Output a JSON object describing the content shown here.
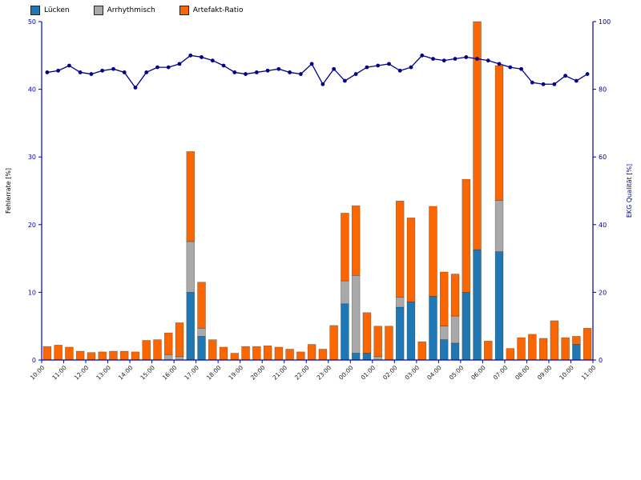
{
  "page": {
    "background": "#ffffff"
  },
  "chart_data": {
    "type": "bar",
    "stacked": true,
    "title": "",
    "grid": false,
    "legend_position": "top-left",
    "x_tick_labels": [
      "10:00",
      "11:00",
      "12:00",
      "13:00",
      "14:00",
      "15:00",
      "16:00",
      "17:00",
      "18:00",
      "19:00",
      "20:00",
      "21:00",
      "22:00",
      "23:00",
      "00:00",
      "01:00",
      "02:00",
      "03:00",
      "04:00",
      "05:00",
      "06:00",
      "07:00",
      "08:00",
      "09:00",
      "10:00",
      "11:00"
    ],
    "left_axis": {
      "label": "Fehlerrate [%]",
      "min": 0,
      "max": 50,
      "ticks": [
        0,
        10,
        20,
        30,
        40,
        50
      ],
      "color": "#0000cc",
      "title_color": "#000000"
    },
    "right_axis": {
      "label": "EKG Qualität [%]",
      "min": 0,
      "max": 100,
      "ticks": [
        0,
        20,
        40,
        60,
        80,
        100
      ],
      "color": "#00008b",
      "title_color": "#00008b"
    },
    "x_axis": {
      "label": "",
      "tick_label_color": "#1a1a1a",
      "line_color": "#0000cc"
    },
    "series": [
      {
        "name": "Lücken",
        "type": "bar",
        "color": "#1f77b4",
        "values": [
          0,
          0,
          0,
          0,
          0,
          0,
          0,
          0,
          0,
          0,
          0,
          0,
          0,
          10,
          3.5,
          0,
          0,
          0,
          0,
          0,
          0,
          0,
          0,
          0,
          0,
          0,
          0,
          8.3,
          1,
          1,
          0,
          0,
          7.8,
          8.6,
          0,
          9.4,
          3,
          2.5,
          10,
          16.3,
          0,
          16,
          0,
          0,
          0,
          0,
          0,
          0,
          2.3,
          0
        ]
      },
      {
        "name": "Arrhythmisch",
        "type": "bar",
        "color": "#a9a9a9",
        "values": [
          0,
          0,
          0,
          0,
          0,
          0,
          0,
          0,
          0,
          0,
          0,
          0.8,
          0.5,
          7.5,
          1.2,
          0,
          0,
          0,
          0,
          0,
          0,
          0,
          0,
          0,
          0,
          0,
          0,
          3.4,
          11.5,
          0,
          0.5,
          0,
          1.5,
          0,
          0,
          0,
          2,
          4,
          0,
          0,
          0,
          7.6,
          0,
          0,
          0,
          0,
          0,
          0,
          0,
          0
        ]
      },
      {
        "name": "Artefakt-Ratio",
        "type": "bar",
        "color": "#fa6602",
        "values": [
          2.0,
          2.2,
          1.9,
          1.3,
          1.1,
          1.2,
          1.3,
          1.3,
          1.2,
          2.9,
          3.0,
          3.2,
          5.0,
          13.3,
          6.8,
          3.0,
          1.9,
          1.0,
          2.0,
          2.0,
          2.1,
          1.9,
          1.6,
          1.2,
          2.3,
          1.6,
          5.1,
          10.0,
          10.3,
          6.0,
          4.5,
          5.0,
          14.2,
          12.4,
          2.7,
          13.3,
          8.0,
          6.2,
          16.7,
          33.7,
          2.8,
          19.9,
          1.7,
          3.3,
          3.8,
          3.2,
          5.8,
          3.3,
          1.2,
          4.7
        ]
      },
      {
        "name": "EKG Qualität",
        "type": "line",
        "color": "#00008b",
        "values": [
          85,
          85.5,
          87,
          85,
          84.5,
          85.5,
          86,
          85,
          80.5,
          85,
          86.5,
          86.5,
          87.5,
          90,
          89.5,
          88.5,
          87,
          85,
          84.5,
          85,
          85.5,
          86,
          85,
          84.5,
          87.5,
          81.5,
          86,
          82.5,
          84.5,
          86.5,
          87,
          87.5,
          85.5,
          86.5,
          90,
          89,
          88.5,
          89,
          89.5,
          89,
          88.5,
          87.5,
          86.5,
          86,
          82,
          81.5,
          81.5,
          84,
          82.5,
          84.5
        ]
      }
    ]
  }
}
